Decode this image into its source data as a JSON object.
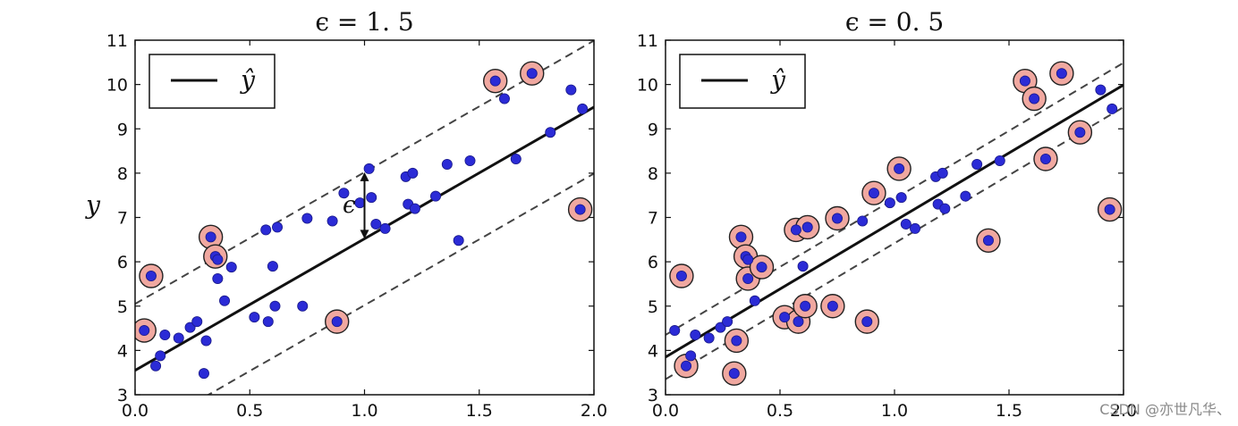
{
  "chart_data": [
    {
      "type": "scatter",
      "title": "ϵ = 1. 5",
      "epsilon": 1.5,
      "xlabel": "",
      "ylabel": "y",
      "xlim": [
        0.0,
        2.0
      ],
      "ylim": [
        3,
        11
      ],
      "xticks": [
        "0.0",
        "0.5",
        "1.0",
        "1.5",
        "2.0"
      ],
      "yticks": [
        "3",
        "4",
        "5",
        "6",
        "7",
        "8",
        "9",
        "10",
        "11"
      ],
      "legend": {
        "label": "ŷ",
        "placement": "upper-left"
      },
      "line": {
        "intercept": 3.55,
        "slope": 2.97
      },
      "annotation": {
        "label": "ϵ",
        "x": 1.0
      },
      "points": [
        [
          0.04,
          4.45
        ],
        [
          0.07,
          5.68
        ],
        [
          0.09,
          3.65
        ],
        [
          0.11,
          3.88
        ],
        [
          0.13,
          4.35
        ],
        [
          0.19,
          4.28
        ],
        [
          0.24,
          4.52
        ],
        [
          0.27,
          4.65
        ],
        [
          0.3,
          3.48
        ],
        [
          0.31,
          4.22
        ],
        [
          0.33,
          6.56
        ],
        [
          0.35,
          6.12
        ],
        [
          0.36,
          6.05
        ],
        [
          0.36,
          5.62
        ],
        [
          0.39,
          5.12
        ],
        [
          0.42,
          5.88
        ],
        [
          0.52,
          4.75
        ],
        [
          0.57,
          6.72
        ],
        [
          0.58,
          4.65
        ],
        [
          0.6,
          5.9
        ],
        [
          0.61,
          5.0
        ],
        [
          0.62,
          6.78
        ],
        [
          0.73,
          5.0
        ],
        [
          0.75,
          6.98
        ],
        [
          0.86,
          6.92
        ],
        [
          0.88,
          4.65
        ],
        [
          0.91,
          7.55
        ],
        [
          0.98,
          7.33
        ],
        [
          1.02,
          8.1
        ],
        [
          1.03,
          7.45
        ],
        [
          1.05,
          6.85
        ],
        [
          1.09,
          6.75
        ],
        [
          1.18,
          7.92
        ],
        [
          1.19,
          7.3
        ],
        [
          1.21,
          8.0
        ],
        [
          1.22,
          7.2
        ],
        [
          1.31,
          7.48
        ],
        [
          1.36,
          8.2
        ],
        [
          1.41,
          6.48
        ],
        [
          1.46,
          8.28
        ],
        [
          1.57,
          10.08
        ],
        [
          1.61,
          9.68
        ],
        [
          1.66,
          8.32
        ],
        [
          1.73,
          10.25
        ],
        [
          1.81,
          8.92
        ],
        [
          1.9,
          9.88
        ],
        [
          1.94,
          7.18
        ],
        [
          1.95,
          9.45
        ]
      ],
      "support_vectors": [
        0,
        1,
        10,
        11,
        25,
        40,
        43,
        46
      ]
    },
    {
      "type": "scatter",
      "title": "ϵ = 0. 5",
      "epsilon": 0.5,
      "xlabel": "",
      "ylabel": "",
      "xlim": [
        0.0,
        2.0
      ],
      "ylim": [
        3,
        11
      ],
      "xticks": [
        "0.0",
        "0.5",
        "1.0",
        "1.5",
        "2.0"
      ],
      "yticks": [
        "3",
        "4",
        "5",
        "6",
        "7",
        "8",
        "9",
        "10",
        "11"
      ],
      "legend": {
        "label": "ŷ",
        "placement": "upper-left"
      },
      "line": {
        "intercept": 3.85,
        "slope": 3.07
      },
      "points": [
        [
          0.04,
          4.45
        ],
        [
          0.07,
          5.68
        ],
        [
          0.09,
          3.65
        ],
        [
          0.11,
          3.88
        ],
        [
          0.13,
          4.35
        ],
        [
          0.19,
          4.28
        ],
        [
          0.24,
          4.52
        ],
        [
          0.27,
          4.65
        ],
        [
          0.3,
          3.48
        ],
        [
          0.31,
          4.22
        ],
        [
          0.33,
          6.56
        ],
        [
          0.35,
          6.12
        ],
        [
          0.36,
          6.05
        ],
        [
          0.36,
          5.62
        ],
        [
          0.39,
          5.12
        ],
        [
          0.42,
          5.88
        ],
        [
          0.52,
          4.75
        ],
        [
          0.57,
          6.72
        ],
        [
          0.58,
          4.65
        ],
        [
          0.6,
          5.9
        ],
        [
          0.61,
          5.0
        ],
        [
          0.62,
          6.78
        ],
        [
          0.73,
          5.0
        ],
        [
          0.75,
          6.98
        ],
        [
          0.86,
          6.92
        ],
        [
          0.88,
          4.65
        ],
        [
          0.91,
          7.55
        ],
        [
          0.98,
          7.33
        ],
        [
          1.02,
          8.1
        ],
        [
          1.03,
          7.45
        ],
        [
          1.05,
          6.85
        ],
        [
          1.09,
          6.75
        ],
        [
          1.18,
          7.92
        ],
        [
          1.19,
          7.3
        ],
        [
          1.21,
          8.0
        ],
        [
          1.22,
          7.2
        ],
        [
          1.31,
          7.48
        ],
        [
          1.36,
          8.2
        ],
        [
          1.41,
          6.48
        ],
        [
          1.46,
          8.28
        ],
        [
          1.57,
          10.08
        ],
        [
          1.61,
          9.68
        ],
        [
          1.66,
          8.32
        ],
        [
          1.73,
          10.25
        ],
        [
          1.81,
          8.92
        ],
        [
          1.9,
          9.88
        ],
        [
          1.94,
          7.18
        ],
        [
          1.95,
          9.45
        ]
      ],
      "support_vectors": [
        1,
        2,
        8,
        9,
        10,
        11,
        13,
        15,
        16,
        17,
        18,
        20,
        21,
        22,
        23,
        25,
        26,
        28,
        38,
        40,
        41,
        42,
        43,
        44,
        46
      ]
    }
  ],
  "colors": {
    "point": "#2b2bd6",
    "point_edge": "#1a1a8a",
    "support_fill": "#f0a8a0",
    "support_edge": "#222222",
    "line": "#111111",
    "dashed": "#444444"
  },
  "watermark": "CSDN @亦世凡华、"
}
